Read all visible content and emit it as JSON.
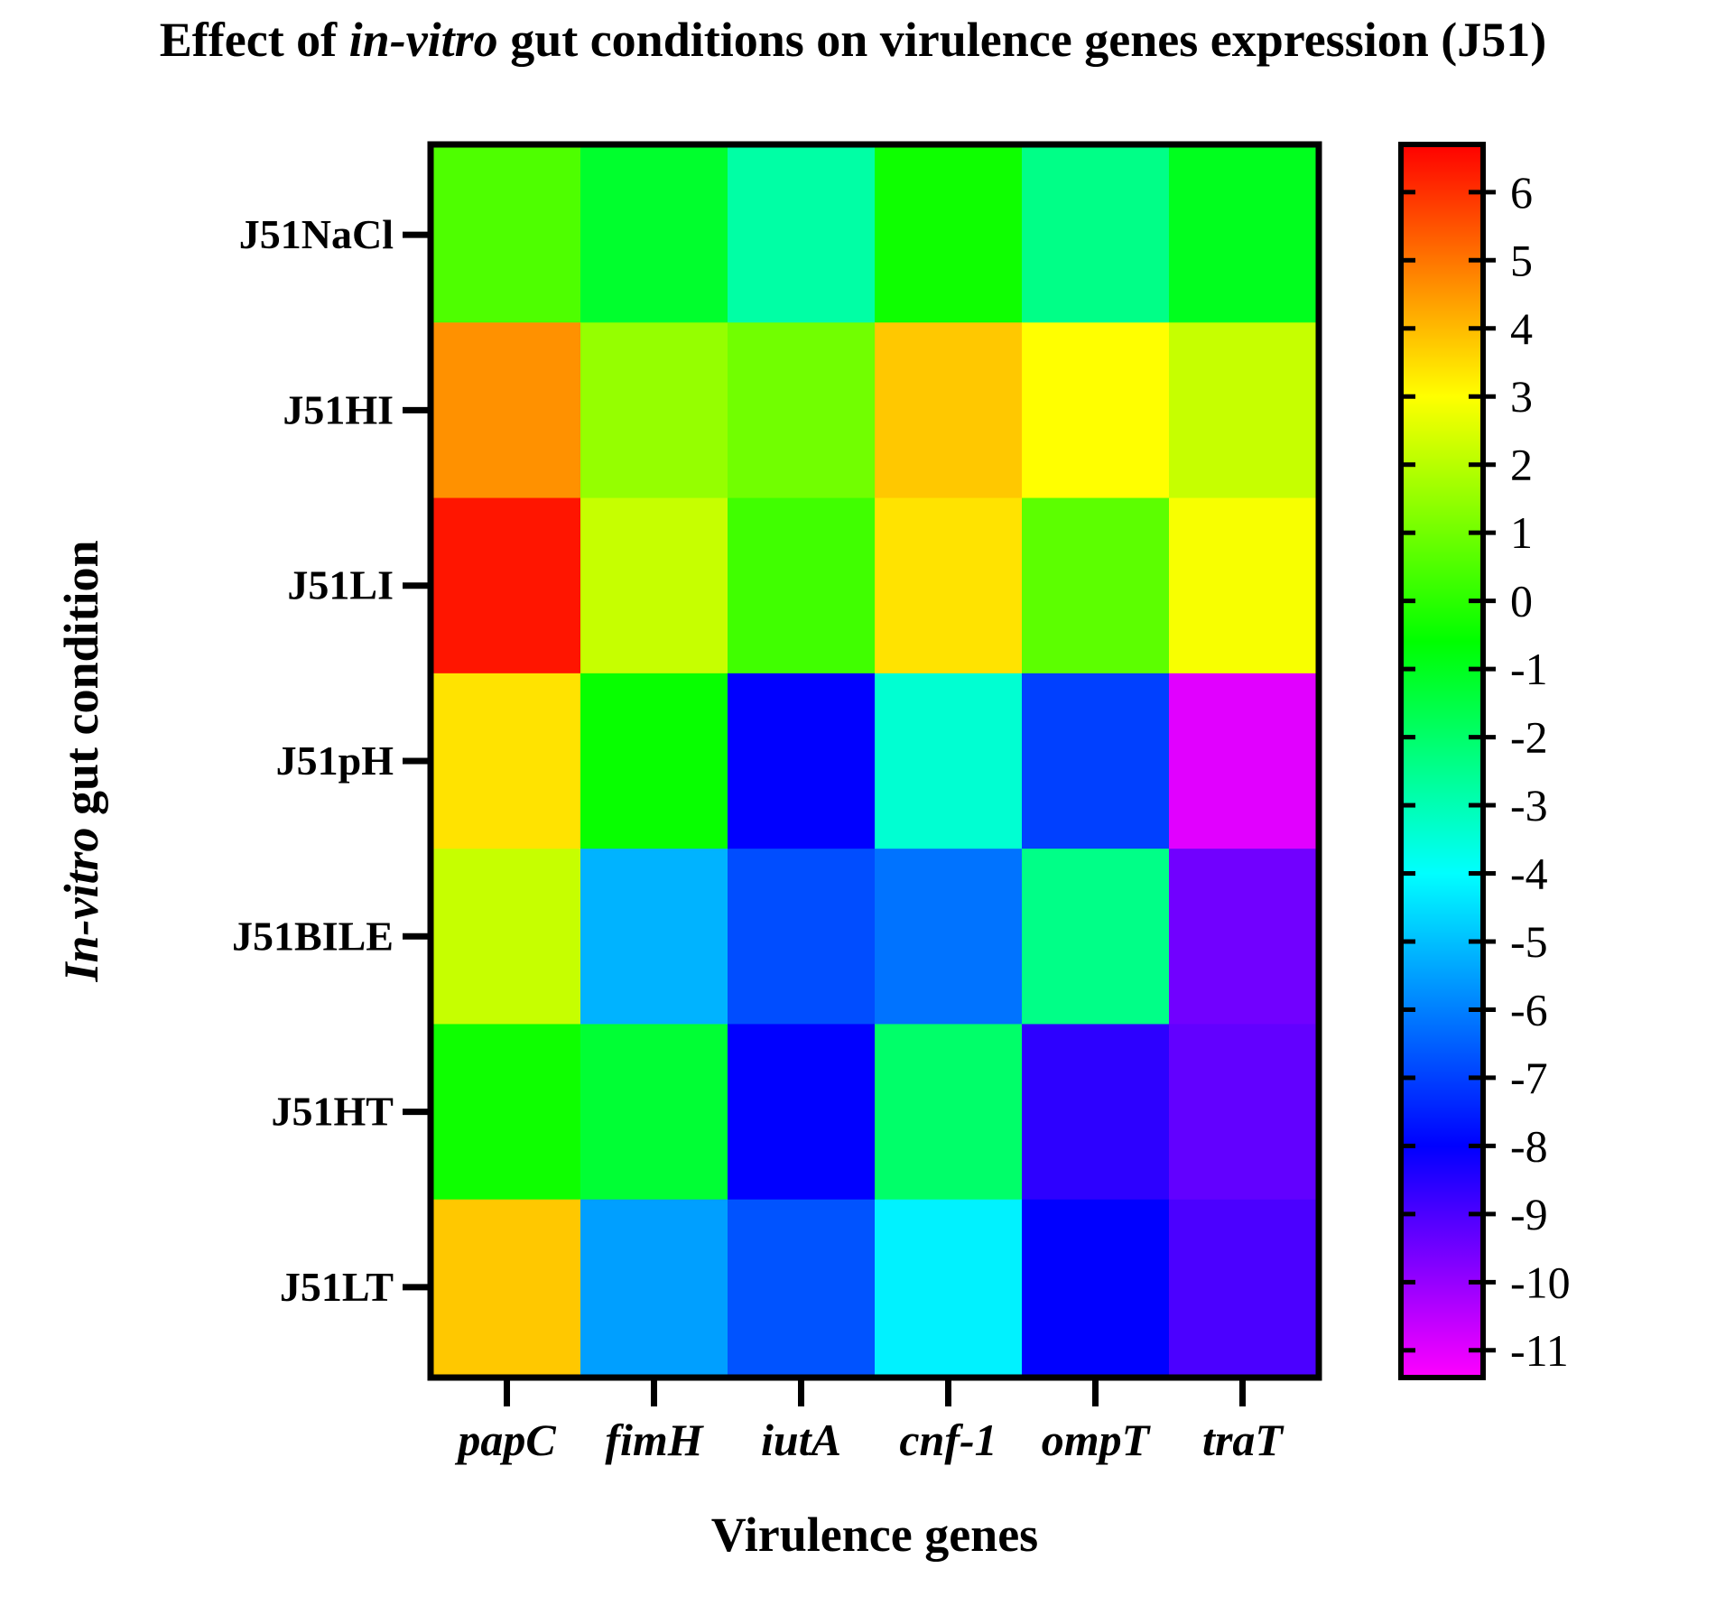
{
  "chart_data": {
    "type": "heatmap",
    "title": {
      "before": "Effect of ",
      "italic": "in-vitro",
      "after": " gut conditions on virulence genes expression (J51)"
    },
    "xlabel": "Virulence genes",
    "ylabel": {
      "italic": "In-vitro",
      "rest": " gut condition"
    },
    "columns": [
      "papC",
      "fimH",
      "iutA",
      "cnf-1",
      "ompT",
      "traT"
    ],
    "rows": [
      "J51NaCl",
      "J51HI",
      "J51LI",
      "J51pH",
      "J51BILE",
      "J51HT",
      "J51LT"
    ],
    "values": [
      [
        0.5,
        -1.2,
        -2.8,
        -0.4,
        -2.4,
        -1.0
      ],
      [
        4.6,
        1.5,
        1.0,
        3.8,
        3.0,
        2.2
      ],
      [
        6.4,
        2.2,
        0.3,
        3.4,
        0.7,
        2.9
      ],
      [
        3.4,
        -0.5,
        -8.0,
        -3.4,
        -7.0,
        -11.0
      ],
      [
        2.2,
        -5.2,
        -6.8,
        -6.2,
        -2.4,
        -9.5
      ],
      [
        -0.4,
        -1.3,
        -8.0,
        -2.0,
        -8.6,
        -9.3
      ],
      [
        3.8,
        -5.5,
        -6.7,
        -4.2,
        -8.0,
        -9.0
      ]
    ],
    "colorbar": {
      "min": -11.4,
      "max": 6.7,
      "ticks": [
        "6",
        "5",
        "4",
        "3",
        "2",
        "1",
        "0",
        "-1",
        "-2",
        "-3",
        "-4",
        "-5",
        "-6",
        "-7",
        "-8",
        "-9",
        "-10",
        "-11"
      ],
      "tick_values": [
        6,
        5,
        4,
        3,
        2,
        1,
        0,
        -1,
        -2,
        -3,
        -4,
        -5,
        -6,
        -7,
        -8,
        -9,
        -10,
        -11
      ],
      "stops": [
        {
          "value": -11.4,
          "color": "#ff00ff"
        },
        {
          "value": -8.0,
          "color": "#0000ff"
        },
        {
          "value": -4.0,
          "color": "#00ffff"
        },
        {
          "value": -0.6,
          "color": "#00ff00"
        },
        {
          "value": 3.0,
          "color": "#ffff00"
        },
        {
          "value": 6.7,
          "color": "#ff0000"
        }
      ]
    }
  }
}
